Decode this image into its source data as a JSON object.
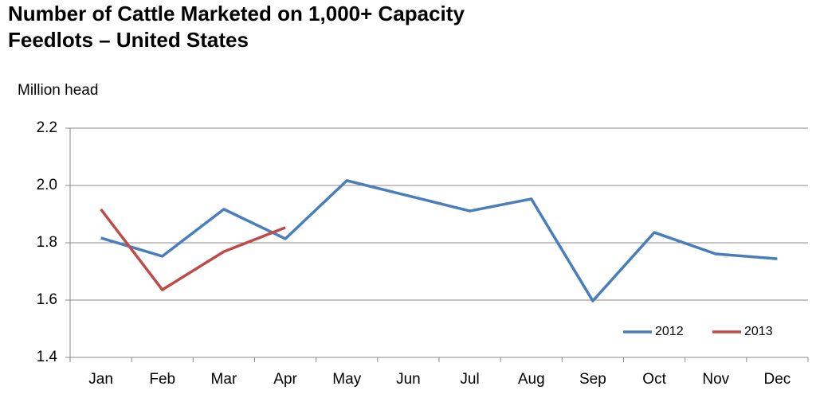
{
  "chart_data": {
    "type": "line",
    "title": [
      "Number of Cattle Marketed on 1,000+ Capacity",
      "Feedlots – United States"
    ],
    "y_axis_label": "Million head",
    "categories": [
      "Jan",
      "Feb",
      "Mar",
      "Apr",
      "May",
      "Jun",
      "Jul",
      "Aug",
      "Sep",
      "Oct",
      "Nov",
      "Dec"
    ],
    "series": [
      {
        "name": "2012",
        "color": "#4a7ebb",
        "values": [
          1.817,
          1.753,
          1.917,
          1.814,
          2.017,
          1.964,
          1.911,
          1.953,
          1.597,
          1.836,
          1.761,
          1.744
        ]
      },
      {
        "name": "2013",
        "color": "#be4b48",
        "values": [
          1.917,
          1.636,
          1.769,
          1.853,
          null,
          null,
          null,
          null,
          null,
          null,
          null,
          null
        ]
      }
    ],
    "ylim": [
      1.4,
      2.2
    ],
    "yticks": [
      1.4,
      1.6,
      1.8,
      {
        "value": 2,
        "label": "2.0"
      },
      2.2
    ],
    "grid": true,
    "legend": "lower-right"
  }
}
